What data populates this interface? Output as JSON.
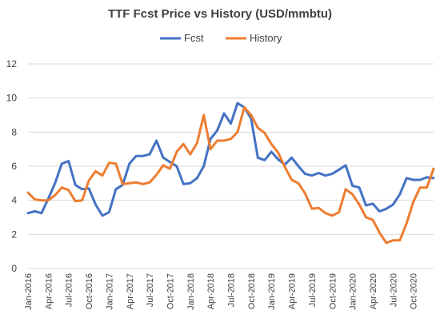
{
  "chart_data": {
    "type": "line",
    "title": "TTF Fcst Price vs History (USD/mmbtu)",
    "xlabel": "",
    "ylabel": "",
    "ylim": [
      0,
      12
    ],
    "yticks": [
      0,
      2,
      4,
      6,
      8,
      10,
      12
    ],
    "grid": true,
    "legend_position": "top-center",
    "xtick_labels": [
      "Jan-2016",
      "Apr-2016",
      "Jul-2016",
      "Oct-2016",
      "Jan-2017",
      "Apr-2017",
      "Jul-2017",
      "Oct-2017",
      "Jan-2018",
      "Apr-2018",
      "Jul-2018",
      "Oct-2018",
      "Jan-2019",
      "Apr-2019",
      "Jul-2019",
      "Oct-2019",
      "Jan-2020",
      "Apr-2020",
      "Jul-2020",
      "Oct-2020"
    ],
    "x_months": [
      "Jan-2016",
      "Feb-2016",
      "Mar-2016",
      "Apr-2016",
      "May-2016",
      "Jun-2016",
      "Jul-2016",
      "Aug-2016",
      "Sep-2016",
      "Oct-2016",
      "Nov-2016",
      "Dec-2016",
      "Jan-2017",
      "Feb-2017",
      "Mar-2017",
      "Apr-2017",
      "May-2017",
      "Jun-2017",
      "Jul-2017",
      "Aug-2017",
      "Sep-2017",
      "Oct-2017",
      "Nov-2017",
      "Dec-2017",
      "Jan-2018",
      "Feb-2018",
      "Mar-2018",
      "Apr-2018",
      "May-2018",
      "Jun-2018",
      "Jul-2018",
      "Aug-2018",
      "Sep-2018",
      "Oct-2018",
      "Nov-2018",
      "Dec-2018",
      "Jan-2019",
      "Feb-2019",
      "Mar-2019",
      "Apr-2019",
      "May-2019",
      "Jun-2019",
      "Jul-2019",
      "Aug-2019",
      "Sep-2019",
      "Oct-2019",
      "Nov-2019",
      "Dec-2019",
      "Jan-2020",
      "Feb-2020",
      "Mar-2020",
      "Apr-2020",
      "May-2020",
      "Jun-2020",
      "Jul-2020",
      "Aug-2020",
      "Sep-2020",
      "Oct-2020",
      "Nov-2020",
      "Dec-2020",
      "Jan-2021"
    ],
    "series": [
      {
        "name": "Fcst",
        "color": "#4472C4",
        "values": [
          3.25,
          3.35,
          3.25,
          4.1,
          5.0,
          6.15,
          6.3,
          4.9,
          4.65,
          4.7,
          3.75,
          3.1,
          3.3,
          4.65,
          4.9,
          6.15,
          6.6,
          6.6,
          6.7,
          7.5,
          6.5,
          6.25,
          6.0,
          4.95,
          5.0,
          5.3,
          6.0,
          7.6,
          8.1,
          9.1,
          8.5,
          9.7,
          9.45,
          8.8,
          6.5,
          6.35,
          6.85,
          6.4,
          6.1,
          6.5,
          6.0,
          5.55,
          5.45,
          5.6,
          5.45,
          5.55,
          5.8,
          6.05,
          4.85,
          4.75,
          3.7,
          3.8,
          3.35,
          3.5,
          3.75,
          4.35,
          5.3,
          5.2,
          5.2,
          5.35,
          5.3
        ]
      },
      {
        "name": "History",
        "color": "#ED7D31",
        "values": [
          4.45,
          4.05,
          4.0,
          4.0,
          4.3,
          4.75,
          4.6,
          3.95,
          4.0,
          5.15,
          5.7,
          5.45,
          6.2,
          6.15,
          4.95,
          5.0,
          5.05,
          4.95,
          5.05,
          5.5,
          6.05,
          5.85,
          6.85,
          7.3,
          6.7,
          7.35,
          9.0,
          7.0,
          7.5,
          7.5,
          7.6,
          8.0,
          9.45,
          9.0,
          8.25,
          7.95,
          7.3,
          6.8,
          5.95,
          5.2,
          5.0,
          4.4,
          3.5,
          3.55,
          3.25,
          3.1,
          3.3,
          4.65,
          4.35,
          3.75,
          3.0,
          2.85,
          2.1,
          1.5,
          1.65,
          1.65,
          2.65,
          3.9,
          4.75,
          4.75,
          5.85
        ]
      }
    ]
  }
}
